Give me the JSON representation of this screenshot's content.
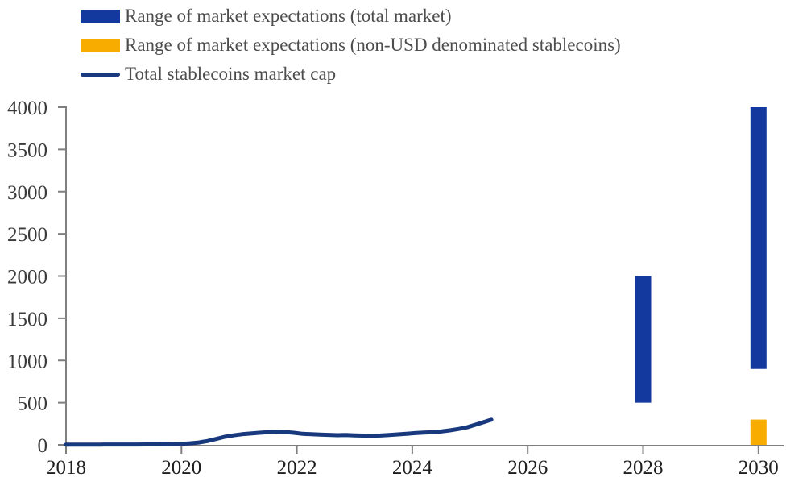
{
  "colors": {
    "axis": "#7f7f7f",
    "bar_blue": "#13399f",
    "bar_orange": "#f9ac00",
    "line_navy": "#18397e",
    "background": "#ffffff"
  },
  "legend": {
    "items": [
      {
        "label": "Range of market expectations (total market)",
        "swatch": "rect",
        "color": "#13399f"
      },
      {
        "label": "Range of market expectations (non-USD denominated stablecoins)",
        "swatch": "rect",
        "color": "#f9ac00"
      },
      {
        "label": "Total stablecoins market cap",
        "swatch": "line",
        "color": "#18397e"
      }
    ]
  },
  "chart_data": {
    "type": "combo-bar-line",
    "title": "",
    "xlabel": "",
    "ylabel": "",
    "grid": false,
    "legend_position": "top-left",
    "ylim": [
      0,
      4000
    ],
    "xlim": [
      2018,
      2030.45
    ],
    "y_ticks": [
      0,
      500,
      1000,
      1500,
      2000,
      2500,
      3000,
      3500,
      4000
    ],
    "x_ticks": [
      2018,
      2020,
      2022,
      2024,
      2026,
      2028,
      2030
    ],
    "bars": [
      {
        "series": "Range of market expectations (total market)",
        "x": 2028,
        "low": 500,
        "high": 2000,
        "color": "#13399f"
      },
      {
        "series": "Range of market expectations (total market)",
        "x": 2030,
        "low": 900,
        "high": 4000,
        "color": "#13399f"
      },
      {
        "series": "Range of market expectations (non-USD denominated stablecoins)",
        "x": 2030,
        "low": 0,
        "high": 300,
        "color": "#f9ac00"
      }
    ],
    "line": {
      "name": "Total stablecoins market cap",
      "color": "#18397e",
      "points": [
        [
          2018.0,
          3
        ],
        [
          2018.2,
          3
        ],
        [
          2018.4,
          3
        ],
        [
          2018.6,
          3
        ],
        [
          2018.8,
          4
        ],
        [
          2019.0,
          4
        ],
        [
          2019.2,
          4
        ],
        [
          2019.4,
          5
        ],
        [
          2019.6,
          5
        ],
        [
          2019.8,
          7
        ],
        [
          2020.0,
          12
        ],
        [
          2020.15,
          18
        ],
        [
          2020.3,
          28
        ],
        [
          2020.45,
          45
        ],
        [
          2020.6,
          70
        ],
        [
          2020.75,
          95
        ],
        [
          2020.9,
          113
        ],
        [
          2021.05,
          126
        ],
        [
          2021.2,
          135
        ],
        [
          2021.35,
          143
        ],
        [
          2021.5,
          151
        ],
        [
          2021.65,
          156
        ],
        [
          2021.8,
          152
        ],
        [
          2021.95,
          143
        ],
        [
          2022.1,
          131
        ],
        [
          2022.25,
          126
        ],
        [
          2022.4,
          122
        ],
        [
          2022.55,
          118
        ],
        [
          2022.7,
          115
        ],
        [
          2022.85,
          116
        ],
        [
          2023.0,
          113
        ],
        [
          2023.15,
          110
        ],
        [
          2023.3,
          108
        ],
        [
          2023.45,
          111
        ],
        [
          2023.6,
          116
        ],
        [
          2023.75,
          124
        ],
        [
          2023.9,
          131
        ],
        [
          2024.05,
          139
        ],
        [
          2024.2,
          146
        ],
        [
          2024.35,
          151
        ],
        [
          2024.5,
          158
        ],
        [
          2024.65,
          172
        ],
        [
          2024.8,
          188
        ],
        [
          2024.95,
          208
        ],
        [
          2025.1,
          240
        ],
        [
          2025.25,
          272
        ],
        [
          2025.33,
          290
        ],
        [
          2025.37,
          298
        ]
      ]
    }
  }
}
